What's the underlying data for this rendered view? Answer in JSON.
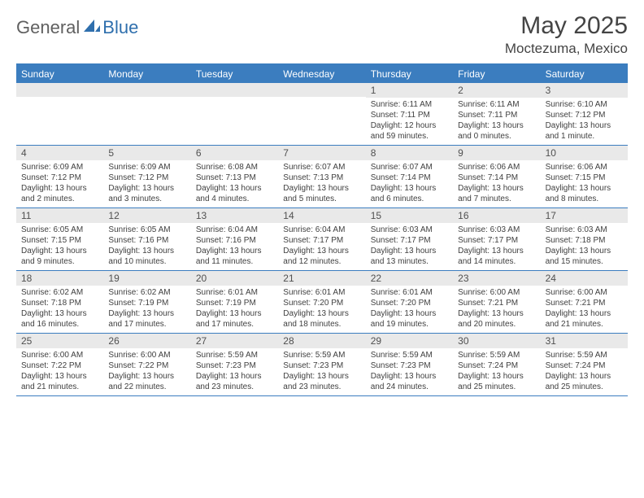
{
  "logo": {
    "text1": "General",
    "text2": "Blue"
  },
  "title": "May 2025",
  "location": "Moctezuma, Mexico",
  "colors": {
    "header_bg": "#3b7dbf",
    "header_text": "#ffffff",
    "daynum_bg": "#e9e9e9",
    "border": "#3b7dbf",
    "text": "#404040"
  },
  "typography": {
    "title_fontsize": 30,
    "location_fontsize": 17,
    "dayhead_fontsize": 12,
    "cell_fontsize": 10
  },
  "day_headers": [
    "Sunday",
    "Monday",
    "Tuesday",
    "Wednesday",
    "Thursday",
    "Friday",
    "Saturday"
  ],
  "weeks": [
    [
      {
        "num": "",
        "lines": []
      },
      {
        "num": "",
        "lines": []
      },
      {
        "num": "",
        "lines": []
      },
      {
        "num": "",
        "lines": []
      },
      {
        "num": "1",
        "lines": [
          "Sunrise: 6:11 AM",
          "Sunset: 7:11 PM",
          "Daylight: 12 hours",
          "and 59 minutes."
        ]
      },
      {
        "num": "2",
        "lines": [
          "Sunrise: 6:11 AM",
          "Sunset: 7:11 PM",
          "Daylight: 13 hours",
          "and 0 minutes."
        ]
      },
      {
        "num": "3",
        "lines": [
          "Sunrise: 6:10 AM",
          "Sunset: 7:12 PM",
          "Daylight: 13 hours",
          "and 1 minute."
        ]
      }
    ],
    [
      {
        "num": "4",
        "lines": [
          "Sunrise: 6:09 AM",
          "Sunset: 7:12 PM",
          "Daylight: 13 hours",
          "and 2 minutes."
        ]
      },
      {
        "num": "5",
        "lines": [
          "Sunrise: 6:09 AM",
          "Sunset: 7:12 PM",
          "Daylight: 13 hours",
          "and 3 minutes."
        ]
      },
      {
        "num": "6",
        "lines": [
          "Sunrise: 6:08 AM",
          "Sunset: 7:13 PM",
          "Daylight: 13 hours",
          "and 4 minutes."
        ]
      },
      {
        "num": "7",
        "lines": [
          "Sunrise: 6:07 AM",
          "Sunset: 7:13 PM",
          "Daylight: 13 hours",
          "and 5 minutes."
        ]
      },
      {
        "num": "8",
        "lines": [
          "Sunrise: 6:07 AM",
          "Sunset: 7:14 PM",
          "Daylight: 13 hours",
          "and 6 minutes."
        ]
      },
      {
        "num": "9",
        "lines": [
          "Sunrise: 6:06 AM",
          "Sunset: 7:14 PM",
          "Daylight: 13 hours",
          "and 7 minutes."
        ]
      },
      {
        "num": "10",
        "lines": [
          "Sunrise: 6:06 AM",
          "Sunset: 7:15 PM",
          "Daylight: 13 hours",
          "and 8 minutes."
        ]
      }
    ],
    [
      {
        "num": "11",
        "lines": [
          "Sunrise: 6:05 AM",
          "Sunset: 7:15 PM",
          "Daylight: 13 hours",
          "and 9 minutes."
        ]
      },
      {
        "num": "12",
        "lines": [
          "Sunrise: 6:05 AM",
          "Sunset: 7:16 PM",
          "Daylight: 13 hours",
          "and 10 minutes."
        ]
      },
      {
        "num": "13",
        "lines": [
          "Sunrise: 6:04 AM",
          "Sunset: 7:16 PM",
          "Daylight: 13 hours",
          "and 11 minutes."
        ]
      },
      {
        "num": "14",
        "lines": [
          "Sunrise: 6:04 AM",
          "Sunset: 7:17 PM",
          "Daylight: 13 hours",
          "and 12 minutes."
        ]
      },
      {
        "num": "15",
        "lines": [
          "Sunrise: 6:03 AM",
          "Sunset: 7:17 PM",
          "Daylight: 13 hours",
          "and 13 minutes."
        ]
      },
      {
        "num": "16",
        "lines": [
          "Sunrise: 6:03 AM",
          "Sunset: 7:17 PM",
          "Daylight: 13 hours",
          "and 14 minutes."
        ]
      },
      {
        "num": "17",
        "lines": [
          "Sunrise: 6:03 AM",
          "Sunset: 7:18 PM",
          "Daylight: 13 hours",
          "and 15 minutes."
        ]
      }
    ],
    [
      {
        "num": "18",
        "lines": [
          "Sunrise: 6:02 AM",
          "Sunset: 7:18 PM",
          "Daylight: 13 hours",
          "and 16 minutes."
        ]
      },
      {
        "num": "19",
        "lines": [
          "Sunrise: 6:02 AM",
          "Sunset: 7:19 PM",
          "Daylight: 13 hours",
          "and 17 minutes."
        ]
      },
      {
        "num": "20",
        "lines": [
          "Sunrise: 6:01 AM",
          "Sunset: 7:19 PM",
          "Daylight: 13 hours",
          "and 17 minutes."
        ]
      },
      {
        "num": "21",
        "lines": [
          "Sunrise: 6:01 AM",
          "Sunset: 7:20 PM",
          "Daylight: 13 hours",
          "and 18 minutes."
        ]
      },
      {
        "num": "22",
        "lines": [
          "Sunrise: 6:01 AM",
          "Sunset: 7:20 PM",
          "Daylight: 13 hours",
          "and 19 minutes."
        ]
      },
      {
        "num": "23",
        "lines": [
          "Sunrise: 6:00 AM",
          "Sunset: 7:21 PM",
          "Daylight: 13 hours",
          "and 20 minutes."
        ]
      },
      {
        "num": "24",
        "lines": [
          "Sunrise: 6:00 AM",
          "Sunset: 7:21 PM",
          "Daylight: 13 hours",
          "and 21 minutes."
        ]
      }
    ],
    [
      {
        "num": "25",
        "lines": [
          "Sunrise: 6:00 AM",
          "Sunset: 7:22 PM",
          "Daylight: 13 hours",
          "and 21 minutes."
        ]
      },
      {
        "num": "26",
        "lines": [
          "Sunrise: 6:00 AM",
          "Sunset: 7:22 PM",
          "Daylight: 13 hours",
          "and 22 minutes."
        ]
      },
      {
        "num": "27",
        "lines": [
          "Sunrise: 5:59 AM",
          "Sunset: 7:23 PM",
          "Daylight: 13 hours",
          "and 23 minutes."
        ]
      },
      {
        "num": "28",
        "lines": [
          "Sunrise: 5:59 AM",
          "Sunset: 7:23 PM",
          "Daylight: 13 hours",
          "and 23 minutes."
        ]
      },
      {
        "num": "29",
        "lines": [
          "Sunrise: 5:59 AM",
          "Sunset: 7:23 PM",
          "Daylight: 13 hours",
          "and 24 minutes."
        ]
      },
      {
        "num": "30",
        "lines": [
          "Sunrise: 5:59 AM",
          "Sunset: 7:24 PM",
          "Daylight: 13 hours",
          "and 25 minutes."
        ]
      },
      {
        "num": "31",
        "lines": [
          "Sunrise: 5:59 AM",
          "Sunset: 7:24 PM",
          "Daylight: 13 hours",
          "and 25 minutes."
        ]
      }
    ]
  ]
}
